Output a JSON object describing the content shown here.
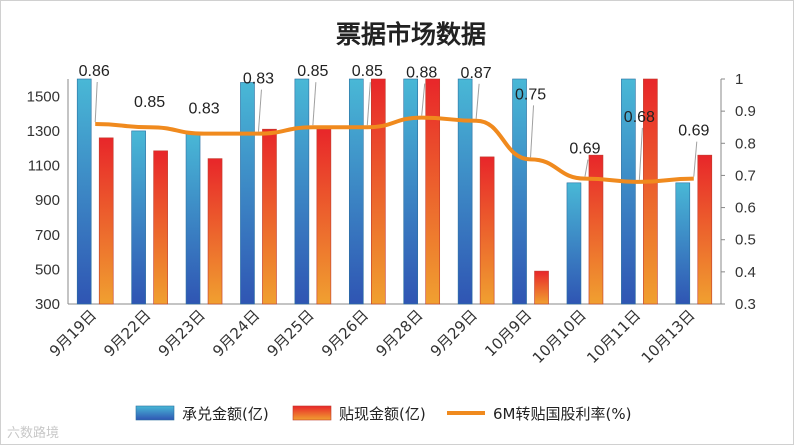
{
  "watermark": "六数路境",
  "colors": {
    "acceptance_top": "#49B8D6",
    "acceptance_bottom": "#2F55B3",
    "discount_top": "#E8262A",
    "discount_bottom": "#F0A030",
    "rate_line": "#F08A1E",
    "axis": "#888888"
  },
  "chart_data": {
    "type": "bar",
    "title": "票据市场数据",
    "categories": [
      "9月19日",
      "9月22日",
      "9月23日",
      "9月24日",
      "9月25日",
      "9月26日",
      "9月28日",
      "9月29日",
      "10月9日",
      "10月10日",
      "10月11日",
      "10月13日"
    ],
    "series": [
      {
        "name": "承兑金额(亿)",
        "type": "bar",
        "axis": "left",
        "values": [
          1600,
          1300,
          1290,
          1580,
          1600,
          1600,
          1600,
          1600,
          1600,
          1000,
          1600,
          1000
        ]
      },
      {
        "name": "贴现金额(亿)",
        "type": "bar",
        "axis": "left",
        "values": [
          1260,
          1185,
          1140,
          1310,
          1310,
          1600,
          1600,
          1150,
          490,
          1160,
          1600,
          1160
        ]
      },
      {
        "name": "6M转贴国股利率(%)",
        "type": "line",
        "axis": "right",
        "values": [
          0.86,
          0.85,
          0.83,
          0.83,
          0.85,
          0.85,
          0.88,
          0.87,
          0.75,
          0.69,
          0.68,
          0.69
        ]
      }
    ],
    "data_labels": [
      "0.86",
      "0.85",
      "0.83",
      "0.83",
      "0.85",
      "0.85",
      "0.88",
      "0.87",
      "0.75",
      "0.69",
      "0.68",
      "0.69"
    ],
    "y_left": {
      "ylim": [
        300,
        1600
      ],
      "ticks": [
        "300",
        "500",
        "700",
        "900",
        "1100",
        "1300",
        "1500"
      ]
    },
    "y_right": {
      "ylim": [
        0.3,
        1.0
      ],
      "ticks": [
        "0.3",
        "0.4",
        "0.5",
        "0.6",
        "0.7",
        "0.8",
        "0.9",
        "1"
      ]
    },
    "grid": false,
    "legend": {
      "placement": "bottom",
      "entries": [
        "承兑金额(亿)",
        "贴现金额(亿)",
        "6M转贴国股利率(%)"
      ]
    }
  }
}
